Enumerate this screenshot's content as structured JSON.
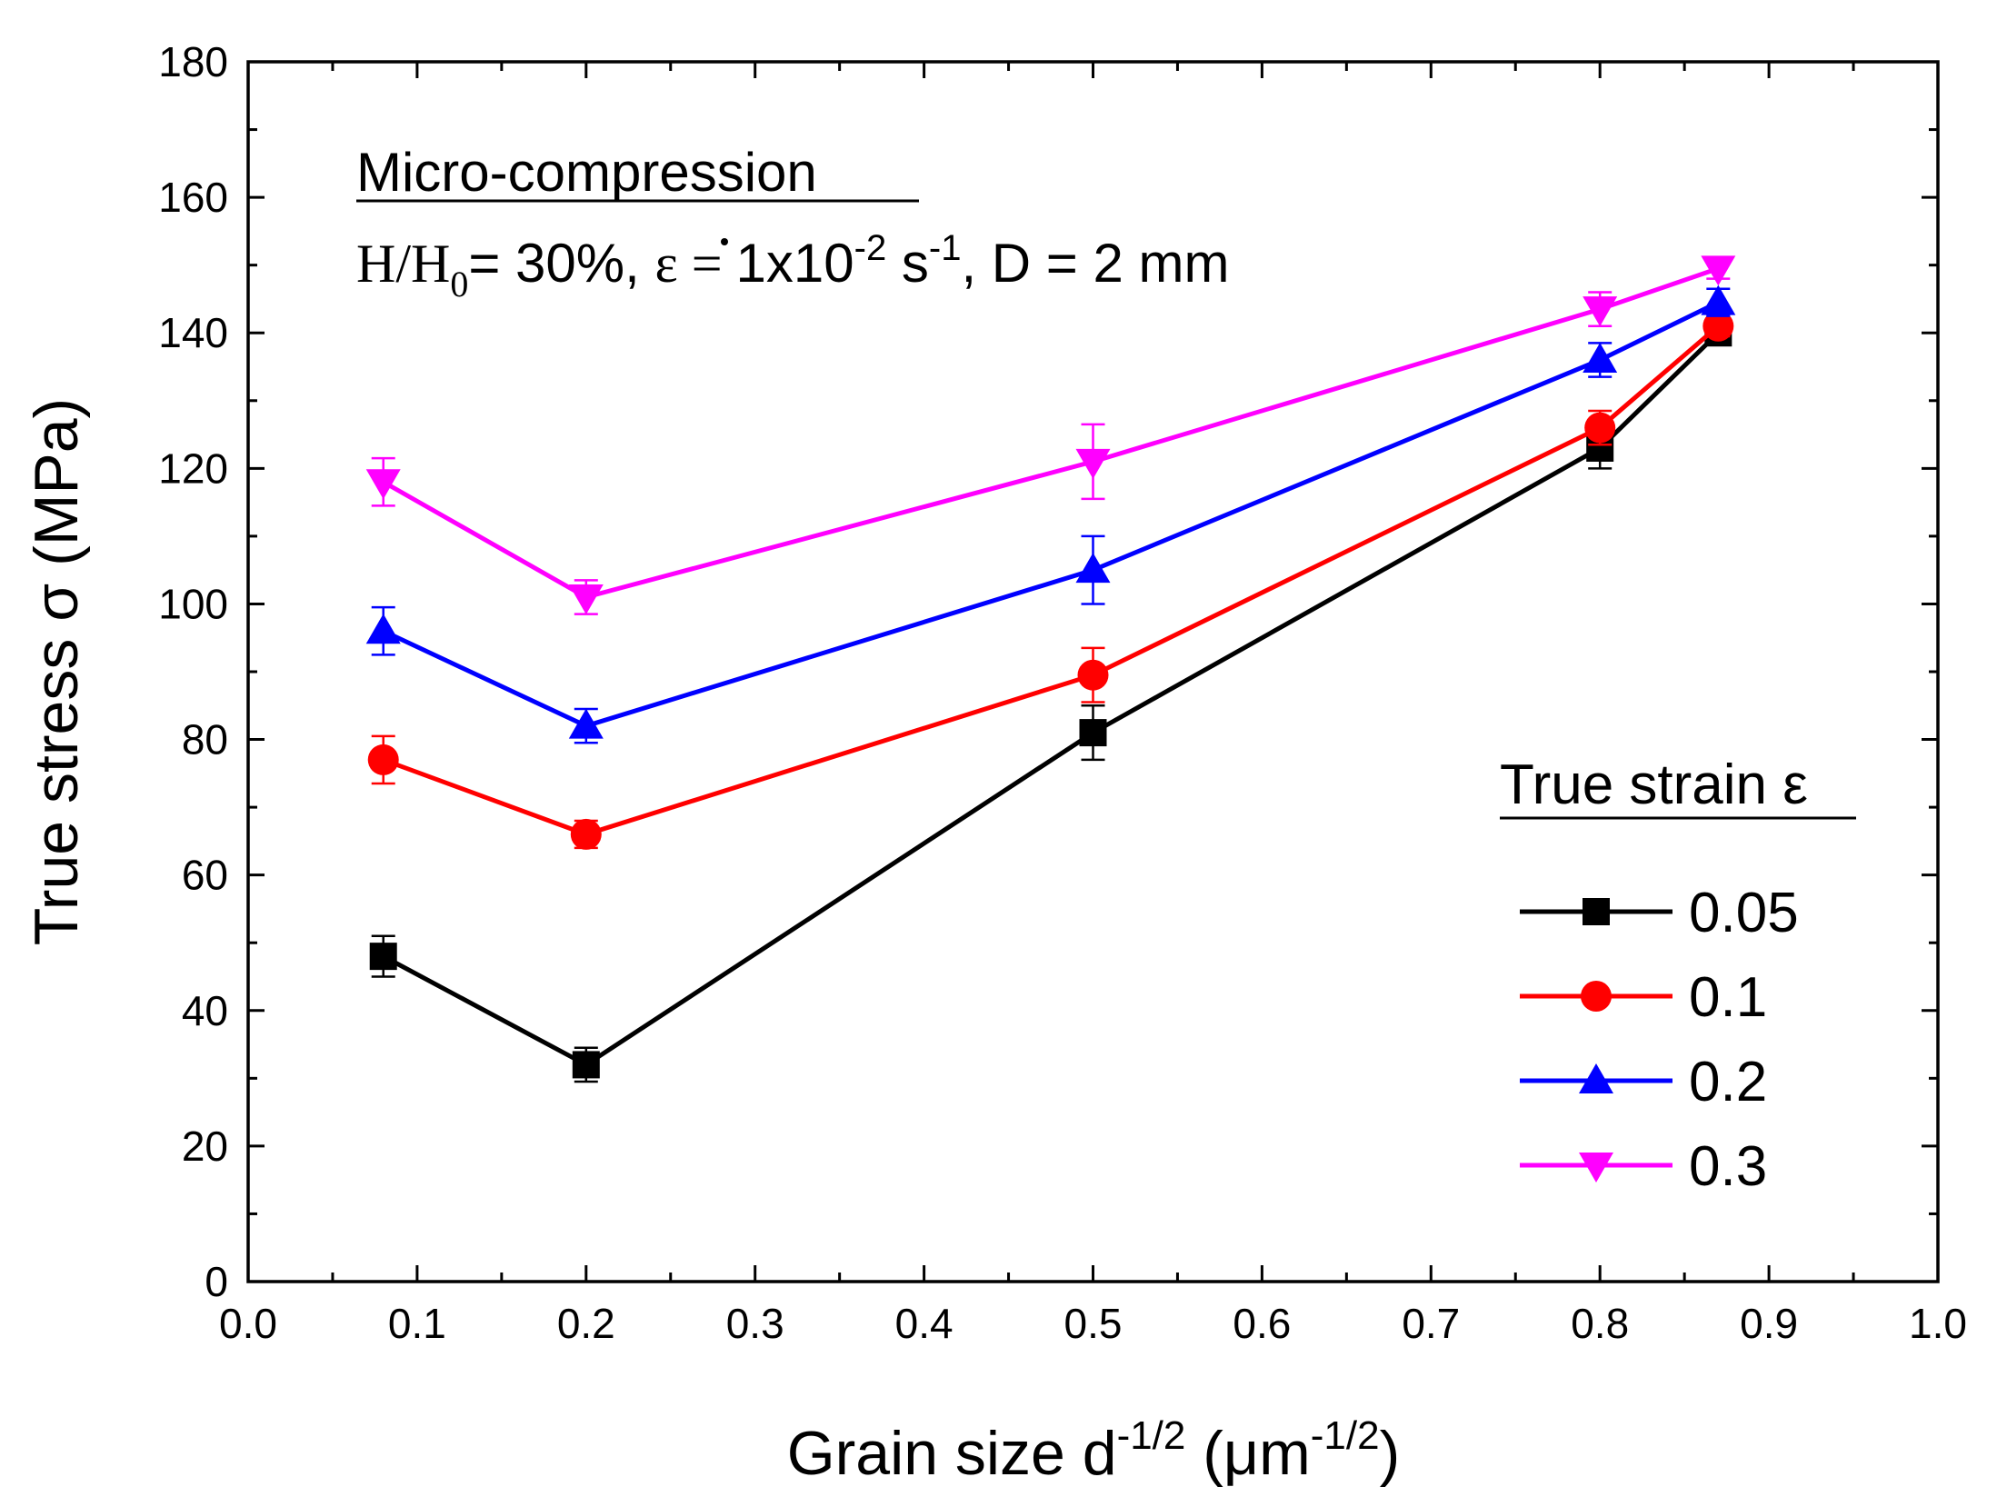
{
  "chart_data": {
    "type": "line",
    "title": "",
    "xlabel": {
      "base": "Grain size d",
      "sup1": "-1/2",
      "mid": " (μm",
      "sup2": "-1/2",
      "end": ")"
    },
    "ylabel": "True stress σ (MPa)",
    "xlim": [
      0.0,
      1.0
    ],
    "ylim": [
      0,
      180
    ],
    "xticks": [
      0.0,
      0.1,
      0.2,
      0.3,
      0.4,
      0.5,
      0.6,
      0.7,
      0.8,
      0.9,
      1.0
    ],
    "yticks": [
      0,
      20,
      40,
      60,
      80,
      100,
      120,
      140,
      160,
      180
    ],
    "xtick_labels": [
      "0.0",
      "0.1",
      "0.2",
      "0.3",
      "0.4",
      "0.5",
      "0.6",
      "0.7",
      "0.8",
      "0.9",
      "1.0"
    ],
    "ytick_labels": [
      "0",
      "20",
      "40",
      "60",
      "80",
      "100",
      "120",
      "140",
      "160",
      "180"
    ],
    "x": [
      0.08,
      0.2,
      0.5,
      0.8,
      0.87
    ],
    "series": [
      {
        "name": "0.05",
        "marker": "square",
        "color": "#000000",
        "values": [
          48,
          32,
          81,
          123,
          140
        ],
        "errors": [
          3,
          2.5,
          4,
          3,
          1.5
        ]
      },
      {
        "name": "0.1",
        "marker": "circle",
        "color": "#ff0000",
        "values": [
          77,
          66,
          89.5,
          126,
          141
        ],
        "errors": [
          3.5,
          2,
          4,
          2.5,
          1.5
        ]
      },
      {
        "name": "0.2",
        "marker": "triangle-up",
        "color": "#0000ff",
        "values": [
          96,
          82,
          105,
          136,
          144.5
        ],
        "errors": [
          3.5,
          2.5,
          5,
          2.5,
          2
        ]
      },
      {
        "name": "0.3",
        "marker": "triangle-down",
        "color": "#ff00ff",
        "values": [
          118,
          101,
          121,
          143.5,
          149.5
        ],
        "errors": [
          3.5,
          2.5,
          5.5,
          2.5,
          1.5
        ]
      }
    ],
    "annotation": {
      "heading": "Micro-compression",
      "line2": {
        "h": "H/H",
        "sub0": "0",
        "eq": "= 30%, ",
        "edot": "ε",
        "eq2": " = ",
        "rate": "1x10",
        "exp1": "-2",
        "unit": " s",
        "exp2": "-1",
        "tail": ", D = 2 mm"
      }
    },
    "legend": {
      "title": "True strain ε",
      "position": "lower-right"
    }
  }
}
